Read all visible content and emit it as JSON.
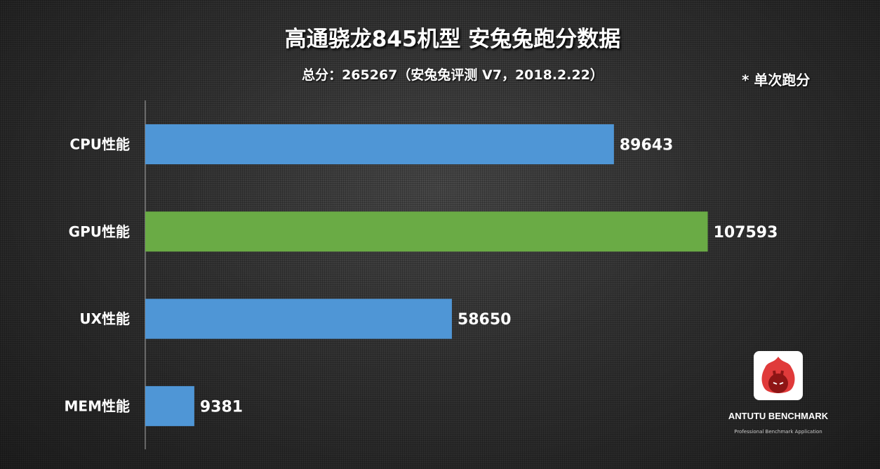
{
  "chart_data": {
    "type": "bar",
    "orientation": "horizontal",
    "title": "高通骁龙845机型  安兔兔跑分数据",
    "subtitle": "总分：265267（安兔兔评测  V7，2018.2.22）",
    "annotation": "* 单次跑分",
    "categories": [
      "CPU性能",
      "GPU性能",
      "UX性能",
      "MEM性能"
    ],
    "values": [
      89643,
      107593,
      58650,
      9381
    ],
    "colors": [
      "#4f96d6",
      "#6aab45",
      "#4f96d6",
      "#4f96d6"
    ],
    "xlim": [
      0,
      140000
    ],
    "grid": false,
    "legend": "none"
  },
  "logo": {
    "name": "ANTUTU BENCHMARK",
    "tagline": "Professional Benchmark Application"
  }
}
